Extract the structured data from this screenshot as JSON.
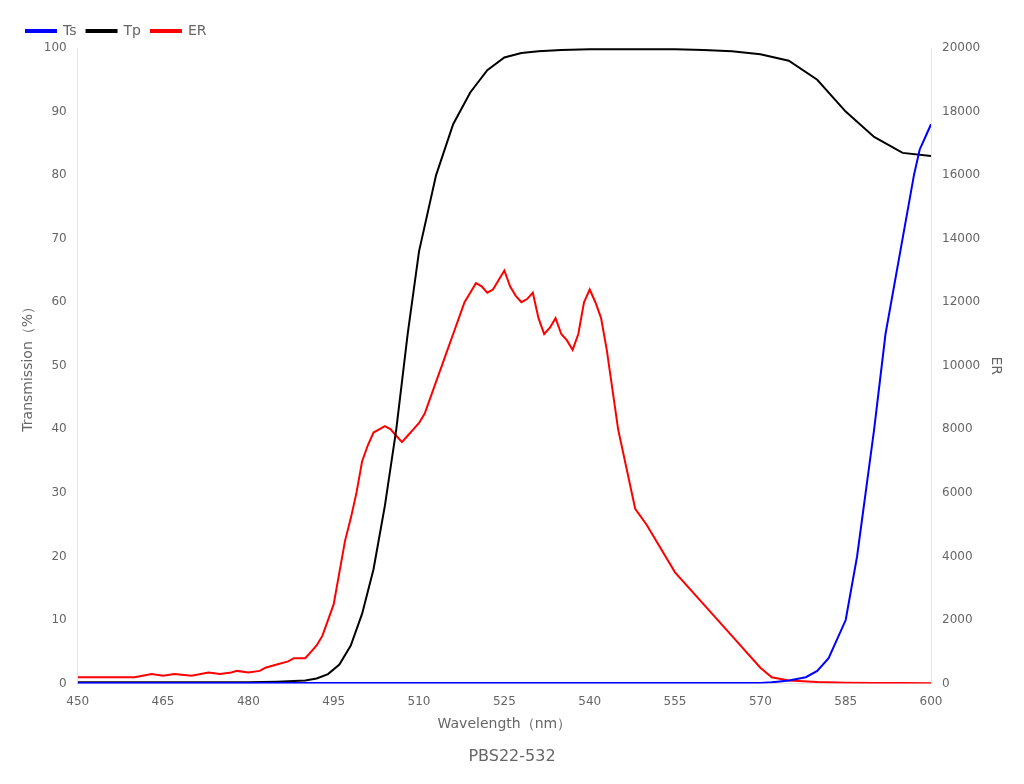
{
  "chart_data": {
    "type": "line",
    "title": "PBS22-532",
    "xlabel": "Wavelength（nm）",
    "ylabel": "Transmission（%）",
    "y2label": "ER",
    "xlim": [
      450,
      600
    ],
    "xticks": [
      450,
      465,
      480,
      495,
      510,
      525,
      540,
      555,
      570,
      585,
      600
    ],
    "ylim": [
      0,
      100
    ],
    "yticks": [
      0,
      10,
      20,
      30,
      40,
      50,
      60,
      70,
      80,
      90,
      100
    ],
    "y2lim": [
      0,
      20000
    ],
    "y2ticks": [
      0,
      2000,
      4000,
      6000,
      8000,
      10000,
      12000,
      14000,
      16000,
      18000,
      20000
    ],
    "grid": false,
    "legend": "upper left",
    "series": [
      {
        "name": "Ts",
        "color": "blue",
        "x": [
          450,
          455,
          460,
          465,
          470,
          475,
          480,
          485,
          490,
          495,
          500,
          505,
          510,
          515,
          520,
          525,
          530,
          535,
          540,
          545,
          550,
          555,
          560,
          565,
          570,
          572,
          573,
          575,
          578,
          580,
          582,
          585,
          587,
          590,
          592,
          595,
          597,
          598,
          599,
          600
        ],
        "values": [
          0.1,
          0.1,
          0.1,
          0.1,
          0.1,
          0.1,
          0.1,
          0.1,
          0.1,
          0.1,
          0.1,
          0.1,
          0.1,
          0.1,
          0.1,
          0.1,
          0.1,
          0.1,
          0.1,
          0.1,
          0.1,
          0.1,
          0.1,
          0.1,
          0.1,
          0.2,
          0.3,
          0.5,
          1.0,
          2.0,
          4.0,
          10.0,
          20.0,
          40.0,
          55.0,
          70.0,
          80.0,
          84.0,
          86.0,
          88.0
        ]
      },
      {
        "name": "Tp",
        "color": "black",
        "x": [
          450,
          455,
          460,
          465,
          470,
          475,
          480,
          485,
          488,
          490,
          492,
          494,
          496,
          498,
          500,
          502,
          504,
          506,
          508,
          510,
          513,
          516,
          519,
          522,
          525,
          528,
          531,
          535,
          540,
          545,
          550,
          555,
          560,
          565,
          570,
          575,
          580,
          585,
          590,
          595,
          600
        ],
        "values": [
          0.2,
          0.2,
          0.2,
          0.2,
          0.2,
          0.2,
          0.2,
          0.3,
          0.4,
          0.5,
          0.8,
          1.5,
          3.0,
          6.0,
          11.0,
          18.0,
          28.0,
          40.0,
          55.0,
          68.0,
          80.0,
          88.0,
          93.0,
          96.5,
          98.5,
          99.2,
          99.5,
          99.7,
          99.8,
          99.8,
          99.8,
          99.8,
          99.7,
          99.5,
          99.0,
          98.0,
          95.0,
          90.0,
          86.0,
          83.5,
          83.0
        ]
      },
      {
        "name": "ER",
        "color": "red",
        "axis": "y2",
        "x": [
          450,
          455,
          460,
          463,
          465,
          467,
          470,
          473,
          475,
          477,
          478,
          480,
          482,
          483,
          485,
          487,
          488,
          490,
          491,
          492,
          493,
          494,
          495,
          496,
          497,
          498,
          499,
          500,
          501,
          502,
          503,
          504,
          505,
          506,
          507,
          508,
          509,
          510,
          511,
          512,
          513,
          514,
          515,
          516,
          517,
          518,
          519,
          520,
          521,
          522,
          523,
          524,
          525,
          526,
          527,
          528,
          529,
          530,
          531,
          532,
          533,
          534,
          535,
          536,
          537,
          538,
          539,
          540,
          541,
          542,
          543,
          545,
          548,
          550,
          555,
          560,
          565,
          570,
          572,
          575,
          580,
          585,
          590,
          595,
          600
        ],
        "values": [
          200,
          200,
          200,
          300,
          250,
          300,
          250,
          350,
          300,
          350,
          400,
          350,
          400,
          500,
          600,
          700,
          800,
          800,
          1000,
          1200,
          1500,
          2000,
          2500,
          3500,
          4500,
          5200,
          6000,
          7000,
          7500,
          7900,
          8000,
          8100,
          8000,
          7800,
          7600,
          7800,
          8000,
          8200,
          8500,
          9000,
          9500,
          10000,
          10500,
          11000,
          11500,
          12000,
          12300,
          12600,
          12500,
          12300,
          12400,
          12700,
          13000,
          12500,
          12200,
          12000,
          12100,
          12300,
          11500,
          11000,
          11200,
          11500,
          11000,
          10800,
          10500,
          11000,
          12000,
          12400,
          12000,
          11500,
          10500,
          8000,
          5500,
          5000,
          3500,
          2500,
          1500,
          500,
          200,
          100,
          50,
          30,
          20,
          15,
          10
        ]
      }
    ]
  }
}
